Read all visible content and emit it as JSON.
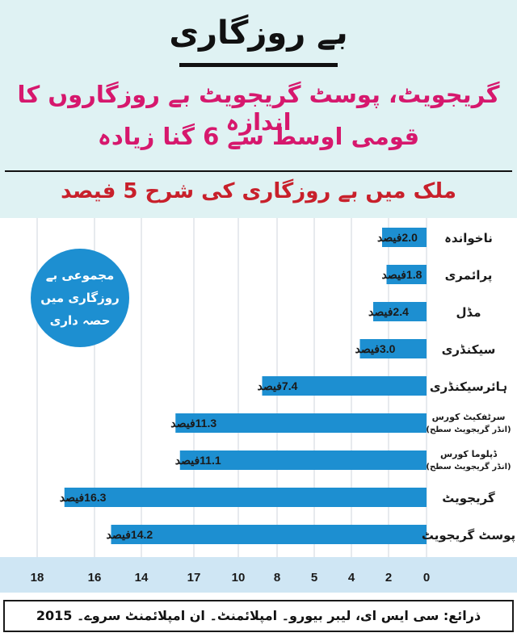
{
  "header": {
    "title": "بے روزگاری",
    "subtitle_line1": "گریجویٹ، پوسٹ گریجویٹ بے روزگاروں کا اندازہ",
    "subtitle_line2": "قومی اوسط سے 6 گنا زیادہ",
    "rate_line": "ملک میں بے روزگاری کی شرح 5 فیصد"
  },
  "badge": {
    "text": "مجموعی بے روزگاری میں حصہ داری"
  },
  "source": "ذرائع: سی ایس ای، لیبر بیورو۔ امپلائمنٹ۔ ان امپلائمنٹ سروے۔ 2015",
  "colors": {
    "bar": "#1d8fd1",
    "title_pink": "#d6186d",
    "rate_red": "#c8202b",
    "panel": "#dff2f3",
    "axis_band": "#cfe6f4"
  },
  "chart_data": {
    "type": "bar",
    "orientation": "horizontal",
    "categories": [
      "ناخواندہ",
      "پرائمری",
      "مڈل",
      "سیکنڈری",
      "ہائرسیکنڈری",
      [
        "سرٹفکیٹ کورس",
        "(انڈر گریجویٹ سطح)"
      ],
      [
        "ڈپلوما کورس",
        "(انڈر گریجویٹ سطح)"
      ],
      "گریجویٹ",
      "پوسٹ گریجویٹ"
    ],
    "values": [
      2.0,
      1.8,
      2.4,
      3.0,
      7.4,
      11.3,
      11.1,
      16.3,
      14.2
    ],
    "value_labels": [
      "2.0فیصد",
      "1.8فیصد",
      "2.4فیصد",
      "3.0فیصد",
      "7.4فیصد",
      "11.3فیصد",
      "11.1فیصد",
      "16.3فیصد",
      "14.2فیصد"
    ],
    "axis_tick_labels": [
      "0",
      "2",
      "4",
      "5",
      "8",
      "10",
      "17",
      "14",
      "16",
      "18"
    ],
    "xlim": [
      0,
      18
    ],
    "grid": "vertical"
  }
}
